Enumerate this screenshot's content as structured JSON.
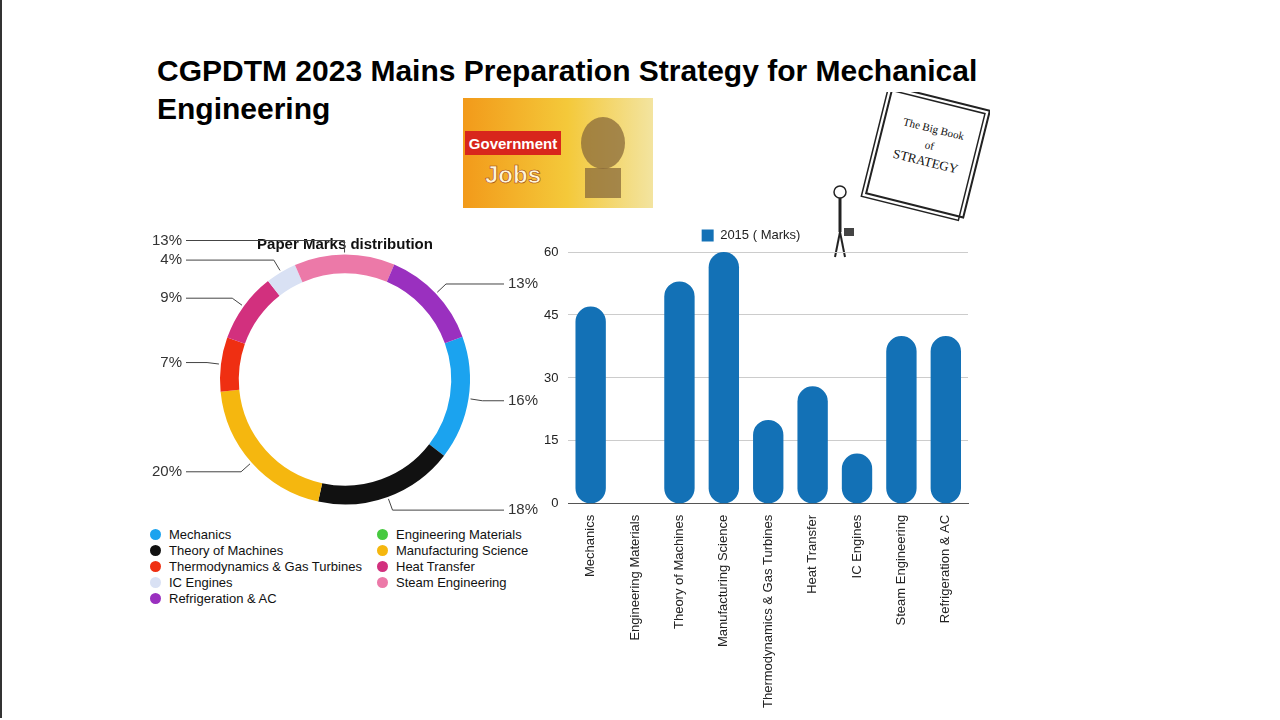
{
  "page": {
    "title": "CGPDTM 2023 Mains Preparation Strategy for Mechanical Engineering",
    "badge": [
      "Government",
      "Jobs"
    ],
    "book": [
      "The Big Book",
      "of",
      "STRATEGY"
    ]
  },
  "chart_data": [
    {
      "type": "doughnut",
      "title": "Paper Marks distribution",
      "categories": [
        "Mechanics",
        "Engineering Materials",
        "Theory of Machines",
        "Manufacturing Science",
        "Thermodynamics & Gas Turbines",
        "Heat Transfer",
        "IC Engines",
        "Steam Engineering",
        "Refrigeration & AC"
      ],
      "values": [
        16,
        0,
        18,
        20,
        7,
        9,
        4,
        13,
        13
      ],
      "value_labels": [
        "16%",
        null,
        "18%",
        "20%",
        "7%",
        "9%",
        "4%",
        "13%",
        "13%"
      ],
      "colors": [
        "#1ba3ef",
        "#46c93f",
        "#111111",
        "#f5b70f",
        "#ef2f12",
        "#d2307e",
        "#d9e1f4",
        "#ec79a8",
        "#9a30bf"
      ],
      "data_labels": true,
      "legend": "bottom"
    },
    {
      "type": "bar",
      "categories": [
        "Mechanics",
        "Engineering Materials",
        "Theory of Machines",
        "Manufacturing Science",
        "Thermodynamics & Gas Turbines",
        "Heat Transfer",
        "IC Engines",
        "Steam Engineering",
        "Refrigeration & AC"
      ],
      "series": [
        {
          "name": "2015 ( Marks)",
          "color": "#1371b6",
          "values": [
            47,
            0,
            53,
            60,
            20,
            28,
            12,
            40,
            40
          ]
        }
      ],
      "ylim": [
        0,
        60
      ],
      "yticks": [
        0,
        15,
        30,
        45,
        60
      ],
      "grid": true,
      "legend": "top"
    }
  ]
}
